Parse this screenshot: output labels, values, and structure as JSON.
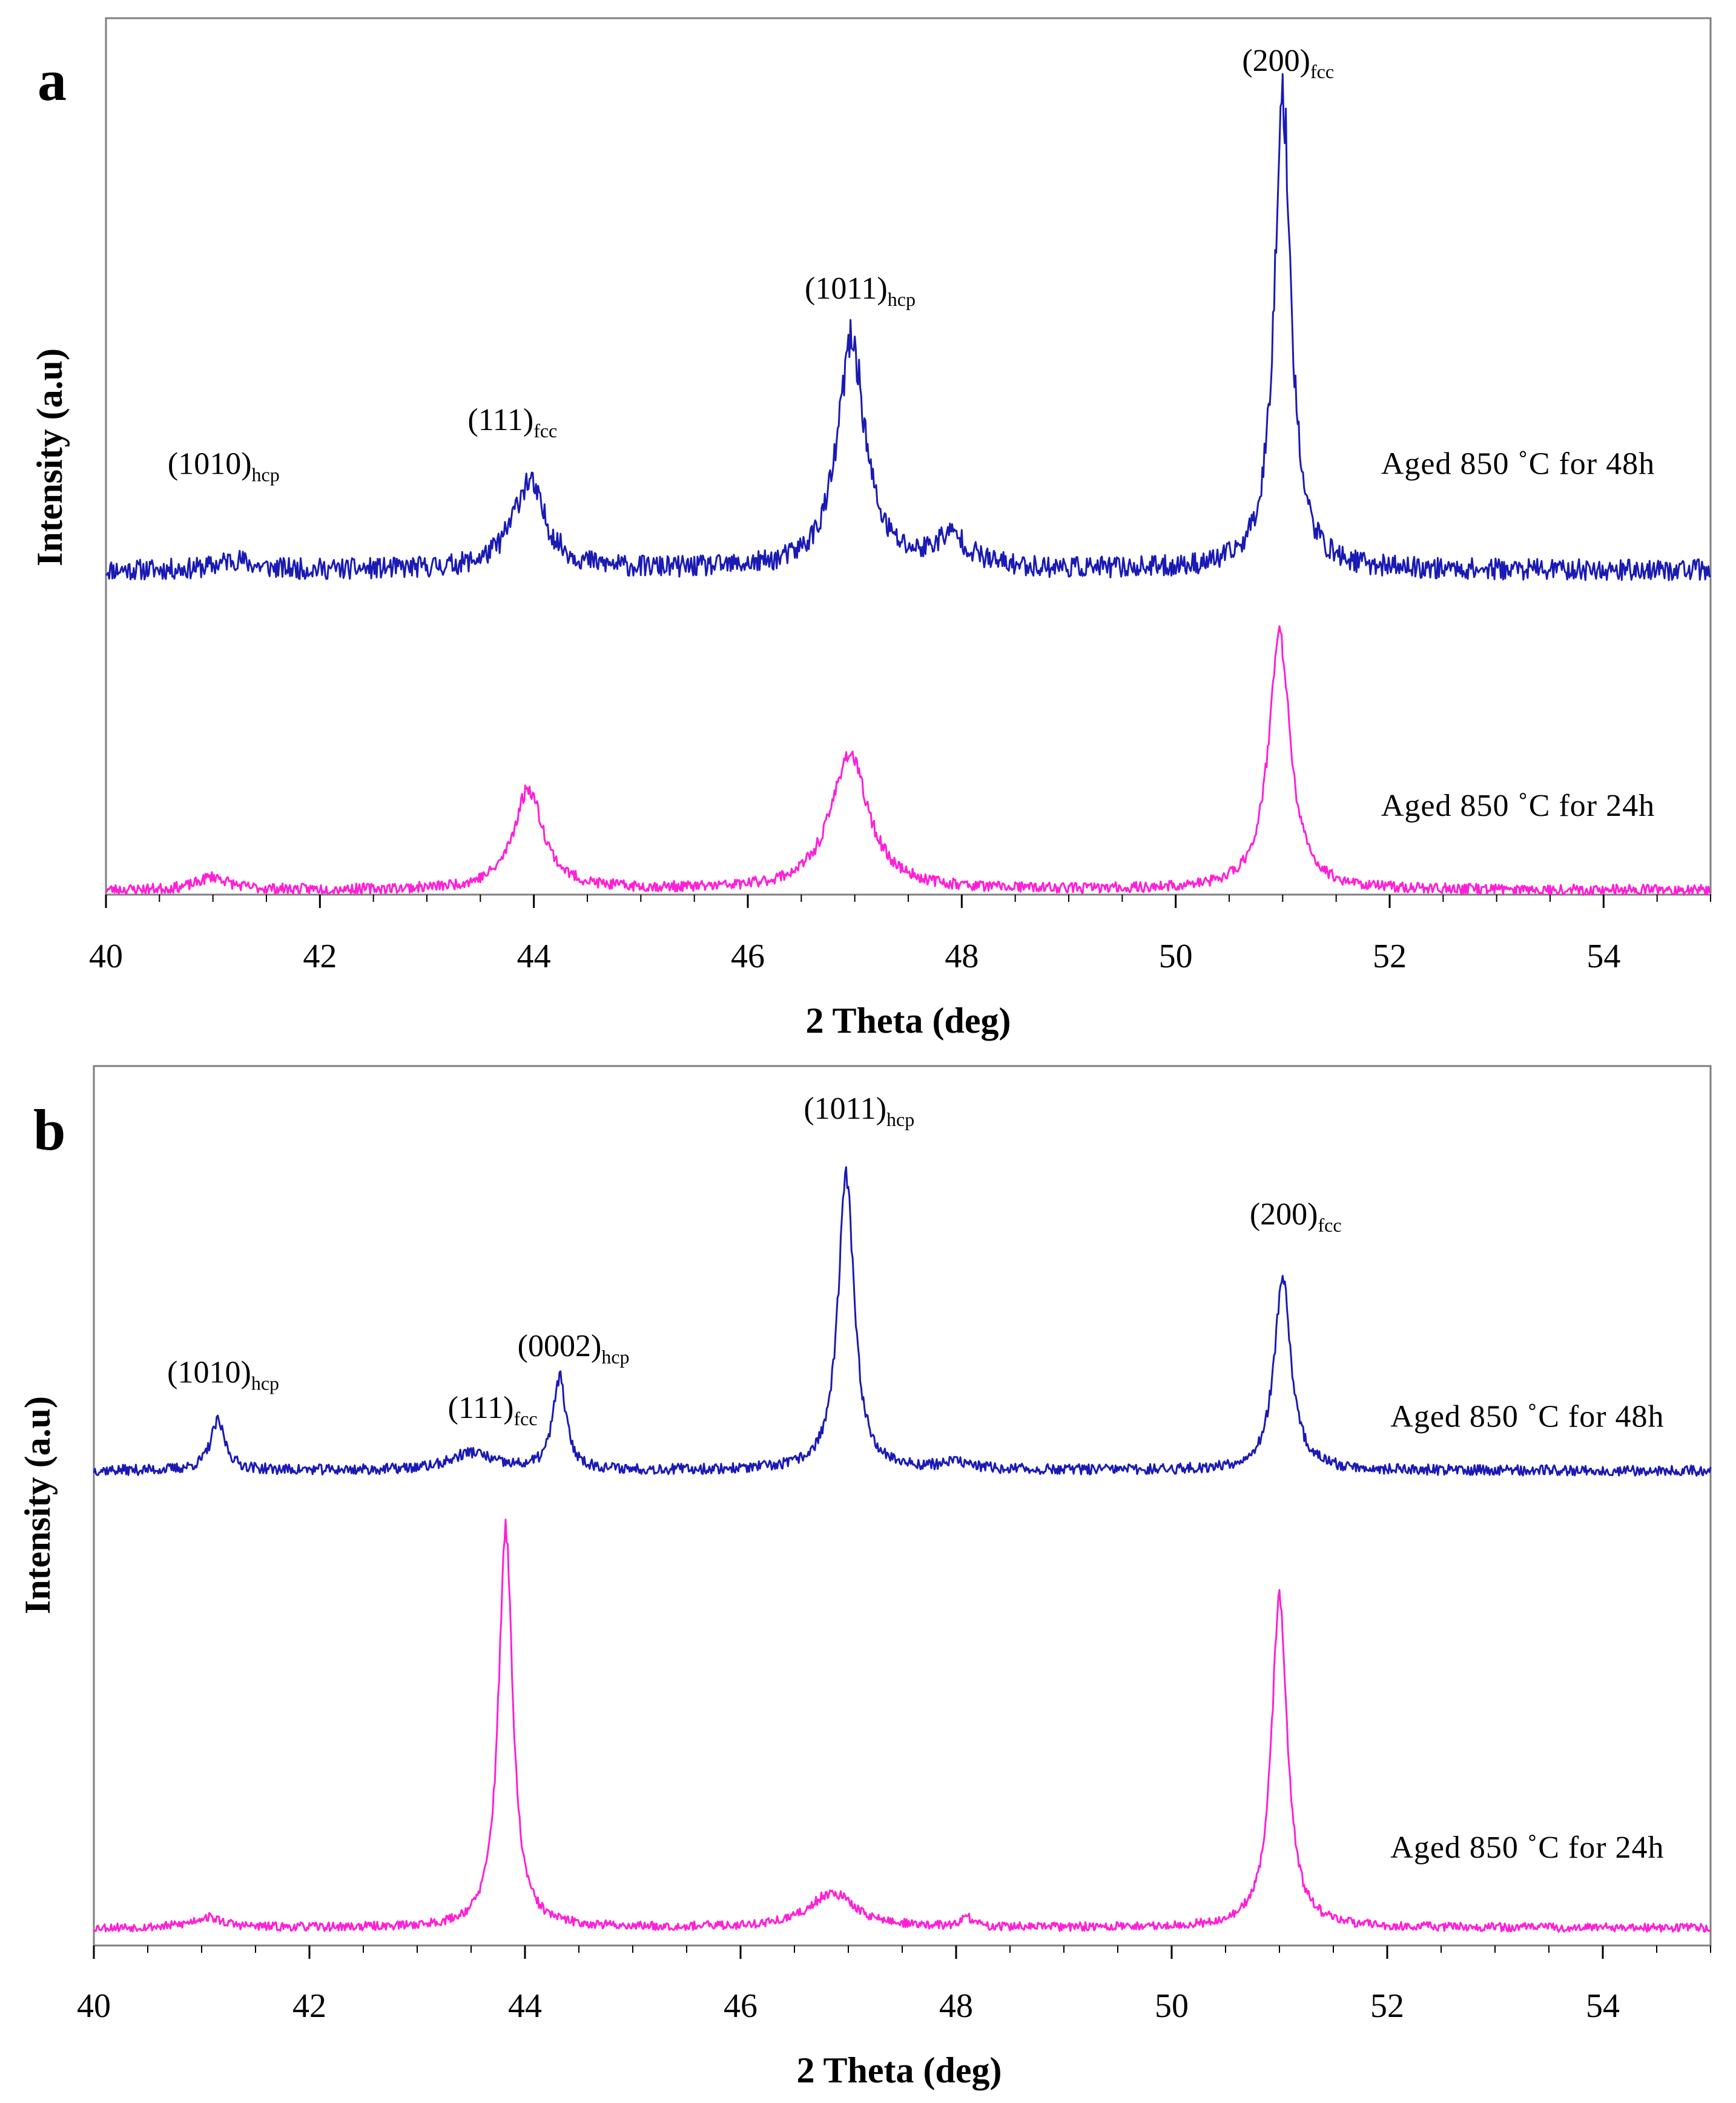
{
  "chart_data": [
    {
      "type": "line",
      "panel": "a",
      "xlabel": "2 Theta (deg)",
      "ylabel": "Intensity (a.u)",
      "xlim": [
        40,
        55
      ],
      "xticks": [
        40,
        42,
        44,
        46,
        48,
        50,
        52,
        54
      ],
      "ylim": [
        0,
        1
      ],
      "grid": false,
      "series": [
        {
          "name": "Aged 850 ˚C for 48h",
          "color": "#1a1ab4",
          "baseline": 0.37,
          "noise": 0.012,
          "seed": 11,
          "peaks": [
            {
              "x": 41.2,
              "height": 0.012,
              "width": 0.3
            },
            {
              "x": 43.95,
              "height": 0.1,
              "width": 0.33
            },
            {
              "x": 46.97,
              "height": 0.26,
              "width": 0.28
            },
            {
              "x": 47.9,
              "height": 0.035,
              "width": 0.35
            },
            {
              "x": 51.0,
              "height": 0.54,
              "width": 0.17
            }
          ]
        },
        {
          "name": "Aged 850 ˚C for 24h",
          "color": "#ff1fd6",
          "baseline": 0.005,
          "noise": 0.006,
          "seed": 23,
          "peaks": [
            {
              "x": 41.0,
              "height": 0.015,
              "width": 0.3
            },
            {
              "x": 43.95,
              "height": 0.115,
              "width": 0.3
            },
            {
              "x": 46.95,
              "height": 0.155,
              "width": 0.38
            },
            {
              "x": 50.97,
              "height": 0.29,
              "width": 0.22
            }
          ]
        }
      ],
      "annotations": [
        {
          "main": "(1010)",
          "sub": "hcp",
          "x": 41.1,
          "y": 0.48
        },
        {
          "main": "(111)",
          "sub": "fcc",
          "x": 43.8,
          "y": 0.53
        },
        {
          "main": "(1011)",
          "sub": "hcp",
          "x": 47.05,
          "y": 0.68
        },
        {
          "main": "(200)",
          "sub": "fcc",
          "x": 51.05,
          "y": 0.94
        }
      ],
      "series_labels": [
        {
          "text": "Aged 850 ˚C for 48h",
          "x": 53.2,
          "y": 0.48
        },
        {
          "text": "Aged 850 ˚C for 24h",
          "x": 53.2,
          "y": 0.09
        }
      ]
    },
    {
      "type": "line",
      "panel": "b",
      "xlabel": "2 Theta (deg)",
      "ylabel": "Intensity (a.u)",
      "xlim": [
        40,
        55
      ],
      "xticks": [
        40,
        42,
        44,
        46,
        48,
        50,
        52,
        54
      ],
      "ylim": [
        0,
        1
      ],
      "grid": false,
      "series": [
        {
          "name": "Aged 850 ˚C for 48h",
          "color": "#1a1ab4",
          "baseline": 0.54,
          "noise": 0.006,
          "seed": 37,
          "peaks": [
            {
              "x": 41.15,
              "height": 0.055,
              "width": 0.15
            },
            {
              "x": 43.5,
              "height": 0.02,
              "width": 0.4
            },
            {
              "x": 44.32,
              "height": 0.105,
              "width": 0.13
            },
            {
              "x": 46.98,
              "height": 0.335,
              "width": 0.16
            },
            {
              "x": 48.0,
              "height": 0.008,
              "width": 0.3
            },
            {
              "x": 51.03,
              "height": 0.215,
              "width": 0.17
            }
          ]
        },
        {
          "name": "Aged 850 ˚C for 24h",
          "color": "#ff1fd6",
          "baseline": 0.02,
          "noise": 0.005,
          "seed": 53,
          "peaks": [
            {
              "x": 41.05,
              "height": 0.012,
              "width": 0.3
            },
            {
              "x": 43.82,
              "height": 0.455,
              "width": 0.14
            },
            {
              "x": 46.85,
              "height": 0.04,
              "width": 0.45
            },
            {
              "x": 48.1,
              "height": 0.012,
              "width": 0.1
            },
            {
              "x": 51.0,
              "height": 0.375,
              "width": 0.16
            }
          ]
        }
      ],
      "annotations": [
        {
          "main": "(1010)",
          "sub": "hcp",
          "x": 41.2,
          "y": 0.64
        },
        {
          "main": "(111)",
          "sub": "fcc",
          "x": 43.7,
          "y": 0.6
        },
        {
          "main": "(0002)",
          "sub": "hcp",
          "x": 44.45,
          "y": 0.67
        },
        {
          "main": "(1011)",
          "sub": "hcp",
          "x": 47.1,
          "y": 0.94
        },
        {
          "main": "(200)",
          "sub": "fcc",
          "x": 51.15,
          "y": 0.82
        }
      ],
      "series_labels": [
        {
          "text": "Aged 850 ˚C for 48h",
          "x": 53.3,
          "y": 0.59
        },
        {
          "text": "Aged 850 ˚C for 24h",
          "x": 53.3,
          "y": 0.1
        }
      ]
    }
  ]
}
